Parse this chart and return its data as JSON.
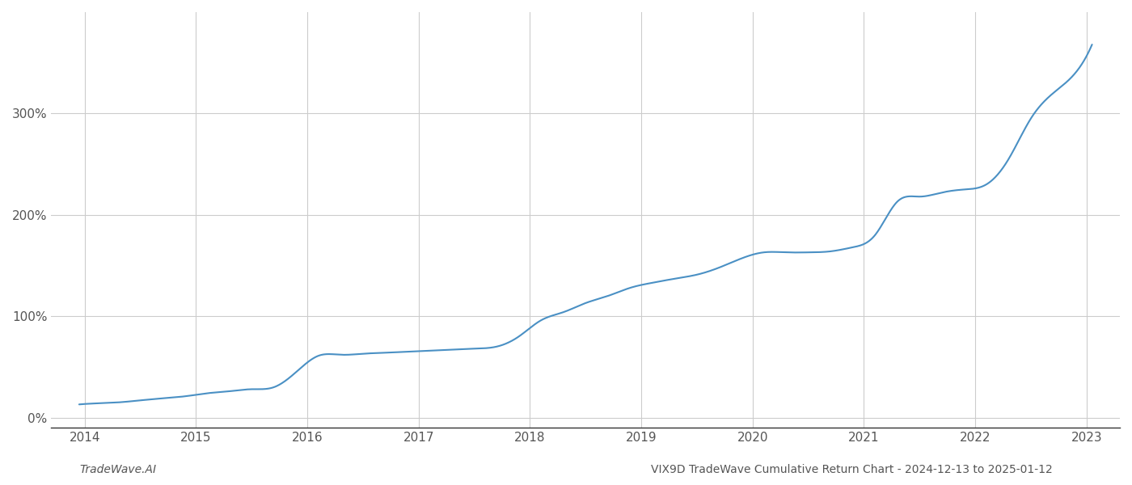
{
  "title": "VIX9D TradeWave Cumulative Return Chart - 2024-12-13 to 2025-01-12",
  "footer_left": "TradeWave.AI",
  "line_color": "#4a90c4",
  "background_color": "#ffffff",
  "grid_color": "#cccccc",
  "x_years": [
    2014,
    2015,
    2016,
    2017,
    2018,
    2019,
    2020,
    2021,
    2022,
    2023
  ],
  "key_x": [
    2013.95,
    2014.1,
    2014.3,
    2014.5,
    2014.7,
    2014.9,
    2015.1,
    2015.3,
    2015.5,
    2015.7,
    2015.9,
    2016.1,
    2016.3,
    2016.5,
    2016.7,
    2016.9,
    2017.1,
    2017.3,
    2017.5,
    2017.7,
    2017.9,
    2018.1,
    2018.3,
    2018.5,
    2018.7,
    2018.9,
    2019.1,
    2019.3,
    2019.5,
    2019.7,
    2019.9,
    2020.1,
    2020.3,
    2020.5,
    2020.7,
    2020.9,
    2021.1,
    2021.3,
    2021.5,
    2021.7,
    2021.9,
    2022.1,
    2022.3,
    2022.5,
    2022.7,
    2022.9,
    2023.05
  ],
  "key_y": [
    13,
    14,
    15,
    17,
    19,
    21,
    24,
    26,
    28,
    30,
    45,
    61,
    62,
    63,
    64,
    65,
    66,
    67,
    68,
    70,
    80,
    96,
    104,
    113,
    120,
    128,
    133,
    137,
    141,
    148,
    157,
    163,
    163,
    163,
    164,
    168,
    180,
    213,
    218,
    222,
    225,
    230,
    255,
    295,
    320,
    340,
    368
  ],
  "ytick_values": [
    0,
    100,
    200,
    300
  ],
  "ytick_labels": [
    "0%",
    "100%",
    "200%",
    "300%"
  ],
  "xlim": [
    2013.7,
    2023.3
  ],
  "ylim": [
    -10,
    400
  ],
  "line_width": 1.5,
  "footer_fontsize": 10,
  "tick_fontsize": 11,
  "tick_color": "#555555"
}
